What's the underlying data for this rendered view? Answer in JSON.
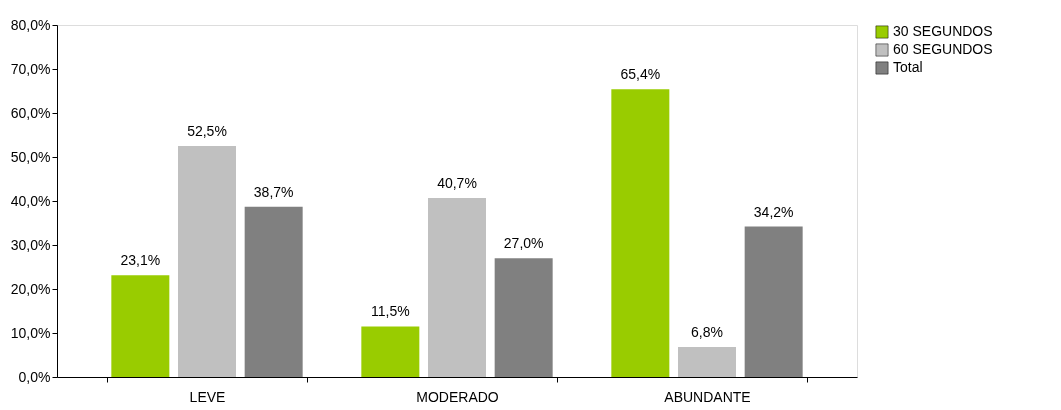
{
  "chart_data": {
    "type": "bar",
    "categories": [
      "LEVE",
      "MODERADO",
      "ABUNDANTE"
    ],
    "series": [
      {
        "name": "30 SEGUNDOS",
        "color": "#99cc00",
        "values": [
          23.1,
          11.5,
          65.4
        ],
        "value_labels": [
          "23,1%",
          "11,5%",
          "65,4%"
        ]
      },
      {
        "name": "60 SEGUNDOS",
        "color": "#c0c0c0",
        "values": [
          52.5,
          40.7,
          6.8
        ],
        "value_labels": [
          "52,5%",
          "40,7%",
          "6,8%"
        ]
      },
      {
        "name": "Total",
        "color": "#808080",
        "values": [
          38.7,
          27.0,
          34.2
        ],
        "value_labels": [
          "38,7%",
          "27,0%",
          "34,2%"
        ]
      }
    ],
    "ylim": [
      0,
      80
    ],
    "yticks": [
      {
        "value": 0,
        "label": "0,0%"
      },
      {
        "value": 10,
        "label": "10,0%"
      },
      {
        "value": 20,
        "label": "20,0%"
      },
      {
        "value": 30,
        "label": "30,0%"
      },
      {
        "value": 40,
        "label": "40,0%"
      },
      {
        "value": 50,
        "label": "50,0%"
      },
      {
        "value": 60,
        "label": "60,0%"
      },
      {
        "value": 70,
        "label": "70,0%"
      },
      {
        "value": 80,
        "label": "80,0%"
      }
    ],
    "grid": false,
    "legend": "right"
  }
}
